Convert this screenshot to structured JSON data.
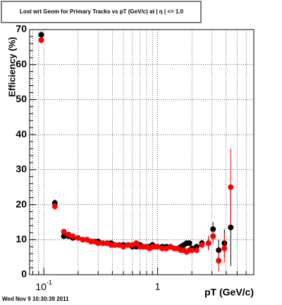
{
  "chart_data": {
    "type": "scatter",
    "title": "Lost wrt Geom for Primary Tracks vs pT (GeV/c) at |  η | <= 1.0",
    "xlabel": "pT (GeV/c)",
    "ylabel": "Efficiency (%)",
    "footer": "Wed Nov  9 10:30:39 2011",
    "xscale": "log",
    "grid": true,
    "xlim": [
      0.075,
      7
    ],
    "ylim": [
      0,
      70
    ],
    "xticks": [
      {
        "value": 0.1,
        "label": "10",
        "exponent": "-1"
      },
      1
    ],
    "yticks": [
      0,
      10,
      20,
      30,
      40,
      50,
      60,
      70
    ],
    "x": [
      0.095,
      0.125,
      0.15,
      0.165,
      0.18,
      0.2,
      0.22,
      0.24,
      0.26,
      0.28,
      0.3,
      0.33,
      0.36,
      0.39,
      0.42,
      0.46,
      0.5,
      0.55,
      0.6,
      0.65,
      0.7,
      0.75,
      0.8,
      0.85,
      0.9,
      0.95,
      1.0,
      1.1,
      1.2,
      1.3,
      1.4,
      1.5,
      1.6,
      1.7,
      1.8,
      1.9,
      2.0,
      2.2,
      2.45,
      2.8,
      3.07,
      3.44,
      3.86,
      4.39
    ],
    "series": [
      {
        "color": "#000000",
        "values": [
          68.5,
          20.5,
          11,
          11,
          10.5,
          10.5,
          10,
          10,
          9.5,
          9.5,
          9.5,
          9,
          9,
          9,
          8.5,
          8.5,
          8.5,
          8.5,
          8,
          8,
          8.5,
          8,
          8,
          8,
          8.5,
          8,
          8,
          8,
          8,
          8,
          7.5,
          7.5,
          8,
          8.5,
          9,
          9,
          7.5,
          8,
          9,
          9,
          13,
          7,
          9,
          13.5
        ],
        "errors": [
          1,
          1,
          0.5,
          0.5,
          0.5,
          0.5,
          0.5,
          0.5,
          0.5,
          0.5,
          0.5,
          0.5,
          0.5,
          0.5,
          0.5,
          0.5,
          0.5,
          0.5,
          0.5,
          0.5,
          0.5,
          0.5,
          0.5,
          0.5,
          0.5,
          0.5,
          0.5,
          0.5,
          0.5,
          0.5,
          0.5,
          0.5,
          0.5,
          0.5,
          0.5,
          0.5,
          0.5,
          0.8,
          1,
          2,
          2,
          3,
          4,
          11
        ]
      },
      {
        "color": "#ff0000",
        "values": [
          67,
          19.5,
          12.3,
          11.5,
          11,
          10.5,
          10,
          10,
          9.5,
          9.5,
          9,
          9,
          9,
          8.5,
          8.5,
          8.5,
          8,
          8.5,
          8.5,
          9,
          8,
          8,
          8,
          7.5,
          8,
          8,
          8,
          7.5,
          7.5,
          8,
          7.5,
          7.5,
          7,
          7,
          6.5,
          7,
          7,
          7,
          8.5,
          9,
          11,
          4,
          7.5,
          25
        ],
        "errors": [
          1,
          1,
          0.5,
          0.5,
          0.5,
          0.5,
          0.5,
          0.5,
          0.5,
          0.5,
          0.5,
          0.5,
          0.5,
          0.5,
          0.5,
          0.5,
          0.5,
          0.5,
          0.5,
          0.5,
          0.5,
          0.5,
          0.5,
          0.5,
          0.5,
          0.5,
          0.5,
          0.5,
          0.5,
          0.5,
          0.5,
          0.5,
          0.5,
          0.5,
          0.5,
          0.5,
          0.5,
          0.8,
          1,
          2,
          2,
          3,
          4,
          11
        ]
      }
    ]
  }
}
